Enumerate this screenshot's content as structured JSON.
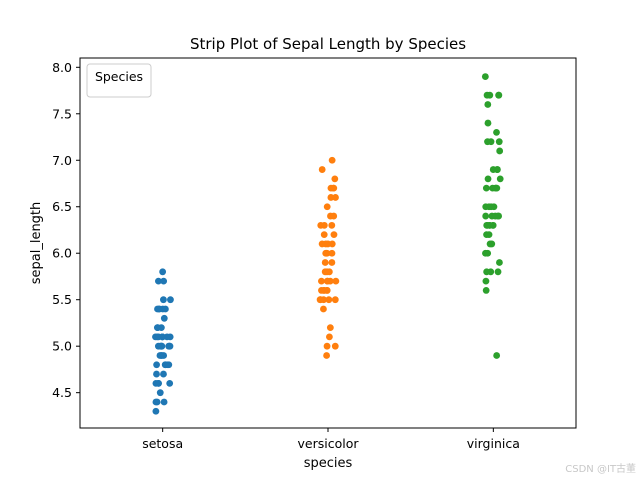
{
  "chart_data": {
    "type": "scatter",
    "title": "Strip Plot of Sepal Length by Species",
    "xlabel": "species",
    "ylabel": "sepal_length",
    "categories": [
      "setosa",
      "versicolor",
      "virginica"
    ],
    "ylim": [
      4.12,
      8.1
    ],
    "yticks": [
      "4.5",
      "5.0",
      "5.5",
      "6.0",
      "6.5",
      "7.0",
      "7.5",
      "8.0"
    ],
    "grid": false,
    "legend": {
      "title": "Species",
      "placement": "upper-left"
    },
    "series": [
      {
        "category": "setosa",
        "color": "#1f77b4",
        "values": [
          5.1,
          4.9,
          4.7,
          4.6,
          5.0,
          5.4,
          4.6,
          5.0,
          4.4,
          4.9,
          5.4,
          4.8,
          4.8,
          4.3,
          5.8,
          5.7,
          5.4,
          5.1,
          5.7,
          5.1,
          5.4,
          5.1,
          4.6,
          5.1,
          4.8,
          5.0,
          5.0,
          5.2,
          5.2,
          4.7,
          4.8,
          5.4,
          5.2,
          5.5,
          4.9,
          5.0,
          5.5,
          4.9,
          4.4,
          5.1,
          5.0,
          4.5,
          4.4,
          5.0,
          5.1,
          4.8,
          5.1,
          4.6,
          5.3,
          5.0
        ]
      },
      {
        "category": "versicolor",
        "color": "#ff7f0e",
        "values": [
          7.0,
          6.4,
          6.9,
          5.5,
          6.5,
          5.7,
          6.3,
          4.9,
          6.6,
          5.2,
          5.0,
          5.9,
          6.0,
          6.1,
          5.6,
          6.7,
          5.6,
          5.8,
          6.2,
          5.6,
          5.9,
          6.1,
          6.3,
          6.1,
          6.4,
          6.6,
          6.8,
          6.7,
          6.0,
          5.7,
          5.5,
          5.5,
          5.8,
          6.0,
          5.4,
          6.0,
          6.7,
          6.3,
          5.6,
          5.5,
          5.5,
          6.1,
          5.8,
          5.0,
          5.6,
          5.7,
          5.7,
          6.2,
          5.1,
          5.7
        ]
      },
      {
        "category": "virginica",
        "color": "#2ca02c",
        "values": [
          6.3,
          5.8,
          7.1,
          6.3,
          6.5,
          7.6,
          4.9,
          7.3,
          6.7,
          7.2,
          6.5,
          6.4,
          6.8,
          5.7,
          5.8,
          6.4,
          6.5,
          7.7,
          7.7,
          6.0,
          6.9,
          5.6,
          7.7,
          6.3,
          6.7,
          7.2,
          6.2,
          6.1,
          6.4,
          7.2,
          7.4,
          7.9,
          6.4,
          6.3,
          6.1,
          7.7,
          6.3,
          6.4,
          6.0,
          6.9,
          6.7,
          6.9,
          5.8,
          6.8,
          6.7,
          6.7,
          6.3,
          6.5,
          6.2,
          5.9
        ]
      }
    ]
  },
  "watermark": "CSDN @IT古董"
}
